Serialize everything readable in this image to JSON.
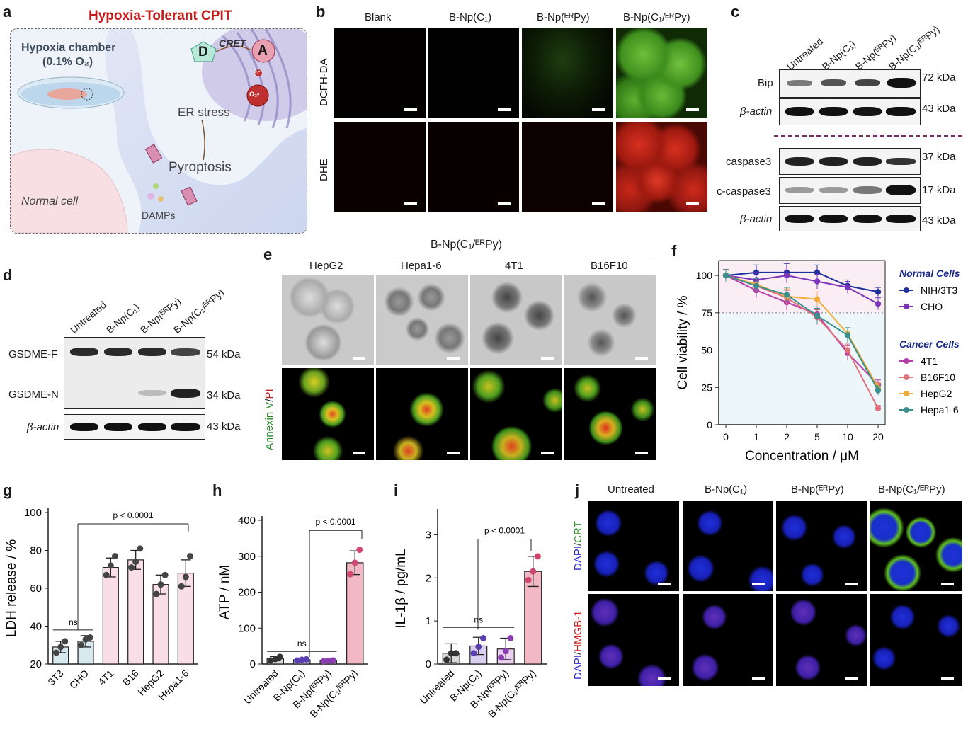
{
  "panels": {
    "a": {
      "letter": "a",
      "title": "Hypoxia-Tolerant CPIT",
      "chamber_title": "Hypoxia chamber",
      "chamber_sub": "(0.1% O₂)",
      "donor": "D",
      "acceptor": "A",
      "cret": "CRET",
      "er_stress": "ER stress",
      "pyroptosis": "Pyroptosis",
      "normal_cell": "Normal cell",
      "damps": "DAMPs",
      "o2_small": "O₂•⁻",
      "o2_big": "O₂•⁻"
    },
    "b": {
      "letter": "b",
      "columns": [
        "Blank",
        "B-Np(C₁)",
        "B-Np(ᴱᴿPy)",
        "B-Np(C₁/ᴱᴿPy)"
      ],
      "rows": [
        "DCFH-DA",
        "DHE"
      ]
    },
    "c": {
      "letter": "c",
      "lanes": [
        "Untreated",
        "B-Np(C₁)",
        "B-Np(ᴱᴿPy)",
        "B-Np(C₁/ᴱᴿPy)"
      ],
      "blots": [
        {
          "name": "Bip",
          "kda": "72 kDa"
        },
        {
          "name": "β-actin",
          "kda": "43 kDa"
        },
        {
          "name": "caspase3",
          "kda": "37 kDa"
        },
        {
          "name": "c-caspase3",
          "kda": "17 kDa"
        },
        {
          "name": "β-actin",
          "kda": "43 kDa"
        }
      ]
    },
    "d": {
      "letter": "d",
      "lanes": [
        "Untreated",
        "B-Np(C₁)",
        "B-Np(ᴱᴿPy)",
        "B-Np(C₁/ᴱᴿPy)"
      ],
      "rows": [
        {
          "name": "GSDME-F",
          "kda": "54 kDa"
        },
        {
          "name": "GSDME-N",
          "kda": "34 kDa"
        },
        {
          "name": "β-actin",
          "kda": "43 kDa"
        }
      ]
    },
    "e": {
      "letter": "e",
      "header": "B-Np(C₁/ᴱᴿPy)",
      "columns": [
        "HepG2",
        "Hepa1-6",
        "4T1",
        "B16F10"
      ],
      "row2_label_a": "Annexin V",
      "row2_label_sep": "/",
      "row2_label_b": "PI"
    },
    "j": {
      "letter": "j",
      "columns": [
        "Untreated",
        "B-Np(C₁)",
        "B-Np(ᴱᴿPy)",
        "B-Np(C₁/ᴱᴿPy)"
      ],
      "row1_a": "DAPI",
      "row1_sep": "/",
      "row1_b": "CRT",
      "row2_a": "DAPI",
      "row2_sep": "/",
      "row2_b": "HMGB-1"
    }
  },
  "chart_data": [
    {
      "id": "f",
      "letter": "f",
      "type": "line",
      "xlabel": "Concentration / μM",
      "ylabel": "Cell viability / %",
      "x": [
        "0",
        "1",
        "2",
        "5",
        "10",
        "20"
      ],
      "ylim": [
        0,
        110
      ],
      "yticks": [
        0,
        25,
        50,
        75,
        100
      ],
      "threshold": 75,
      "legend_group1": "Normal Cells",
      "legend_group2": "Cancer Cells",
      "series": [
        {
          "name": "NIH/3T3",
          "color": "#1f2f9e",
          "values": [
            100,
            102,
            102,
            102,
            93,
            89
          ],
          "err": [
            4,
            5,
            6,
            5,
            4,
            3
          ]
        },
        {
          "name": "CHO",
          "color": "#7b35b8",
          "values": [
            100,
            97,
            100,
            96,
            92,
            81
          ],
          "err": [
            4,
            5,
            5,
            5,
            4,
            4
          ]
        },
        {
          "name": "4T1",
          "color": "#b83ea8",
          "values": [
            100,
            90,
            82,
            74,
            48,
            27
          ],
          "err": [
            4,
            5,
            5,
            5,
            5,
            3
          ]
        },
        {
          "name": "B16F10",
          "color": "#e0707b",
          "values": [
            100,
            93,
            85,
            72,
            50,
            11
          ],
          "err": [
            4,
            5,
            5,
            5,
            4,
            2
          ]
        },
        {
          "name": "HepG2",
          "color": "#f0ad3b",
          "values": [
            100,
            94,
            86,
            84,
            61,
            25
          ],
          "err": [
            4,
            4,
            5,
            5,
            4,
            3
          ]
        },
        {
          "name": "Hepa1-6",
          "color": "#3a8f8f",
          "values": [
            100,
            93,
            87,
            73,
            60,
            23
          ],
          "err": [
            4,
            5,
            5,
            5,
            5,
            3
          ]
        }
      ]
    },
    {
      "id": "g",
      "letter": "g",
      "type": "bar",
      "ylabel": "LDH release / %",
      "categories": [
        "3T3",
        "CHO",
        "4T1",
        "B16",
        "HepG2",
        "Hepa1-6"
      ],
      "values": [
        29,
        32,
        71,
        75,
        62,
        68
      ],
      "err": [
        3,
        3,
        5,
        5,
        5,
        7
      ],
      "points": [
        [
          26,
          29,
          32
        ],
        [
          30,
          33,
          34
        ],
        [
          67,
          72,
          77
        ],
        [
          71,
          74,
          81
        ],
        [
          57,
          62,
          67
        ],
        [
          61,
          66,
          77
        ]
      ],
      "ylim": [
        20,
        100
      ],
      "yticks": [
        20,
        40,
        60,
        80,
        100
      ],
      "colors": [
        "#d7e9ef",
        "#d7e9ef",
        "#f9dde7",
        "#f9dde7",
        "#f9dde7",
        "#f9dde7"
      ],
      "ann_p": "p < 0.0001",
      "ann_ns": "ns"
    },
    {
      "id": "h",
      "letter": "h",
      "type": "bar",
      "ylabel": "ATP / nM",
      "categories": [
        "Untreated",
        "B-Np(C₁)",
        "B-Np(ᴱᴿPy)",
        "B-Np(C₁/ᴱᴿPy)"
      ],
      "values": [
        15,
        12,
        9,
        282
      ],
      "err": [
        6,
        3,
        3,
        33
      ],
      "points": [
        [
          10,
          14,
          20
        ],
        [
          10,
          12,
          13
        ],
        [
          8,
          9,
          10
        ],
        [
          250,
          282,
          318
        ]
      ],
      "ylim": [
        0,
        400
      ],
      "yticks": [
        0,
        100,
        200,
        300,
        400
      ],
      "colors": [
        "#d9d9d9",
        "#d9d0ee",
        "#e9d0ee",
        "#f2b8c5"
      ],
      "ann_p": "p < 0.0001",
      "ann_ns": "ns"
    },
    {
      "id": "i",
      "letter": "i",
      "type": "bar",
      "ylabel": "IL-1β / pg/mL",
      "categories": [
        "Untreated",
        "B-Np(C₁)",
        "B-Np(ᴱᴿPy)",
        "B-Np(C₁/ᴱᴿPy)"
      ],
      "values": [
        0.25,
        0.42,
        0.35,
        2.15
      ],
      "err": [
        0.22,
        0.2,
        0.25,
        0.35
      ],
      "points": [
        [
          0.1,
          0.25,
          0.25
        ],
        [
          0.25,
          0.4,
          0.6
        ],
        [
          0.15,
          0.3,
          0.6
        ],
        [
          1.95,
          2.15,
          2.5
        ]
      ],
      "ylim": [
        0,
        3.5
      ],
      "yticks": [
        0,
        1,
        2,
        3
      ],
      "colors": [
        "#d9d9d9",
        "#d9d0ee",
        "#e9d0ee",
        "#f2b8c5"
      ],
      "ann_p": "p < 0.0001",
      "ann_ns": "ns"
    }
  ]
}
